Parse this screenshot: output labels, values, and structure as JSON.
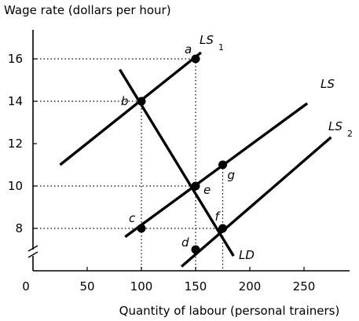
{
  "chart_data": {
    "type": "line",
    "ylabel": "Wage rate (dollars per hour)",
    "xlabel": "Quantity of labour (personal trainers)",
    "origin_label": "0",
    "xlim": [
      0,
      275
    ],
    "ylim": [
      6,
      17.5
    ],
    "x_ticks": [
      50,
      100,
      150,
      200,
      250
    ],
    "x_tick_labels": [
      "50",
      "100",
      "150",
      "200",
      "250"
    ],
    "y_ticks": [
      8,
      10,
      12,
      14,
      16
    ],
    "y_tick_labels": [
      "8",
      "10",
      "12",
      "14",
      "16"
    ],
    "series": [
      {
        "name": "LS",
        "sub": "1",
        "x": [
          25,
          155
        ],
        "y": [
          11,
          16.3
        ]
      },
      {
        "name": "LS",
        "sub": "",
        "x": [
          85,
          253
        ],
        "y": [
          7.6,
          13.9
        ]
      },
      {
        "name": "LS",
        "sub": "2",
        "x": [
          137,
          275
        ],
        "y": [
          6.2,
          12.3
        ]
      },
      {
        "name": "LD",
        "sub": "",
        "x": [
          80,
          185
        ],
        "y": [
          15.5,
          6.7
        ]
      }
    ],
    "points": [
      {
        "label": "a",
        "x": 150,
        "y": 16
      },
      {
        "label": "b",
        "x": 100,
        "y": 14
      },
      {
        "label": "c",
        "x": 100,
        "y": 8
      },
      {
        "label": "d",
        "x": 150,
        "y": 7
      },
      {
        "label": "e",
        "x": 150,
        "y": 10
      },
      {
        "label": "f",
        "x": 175,
        "y": 8
      },
      {
        "label": "g",
        "x": 175,
        "y": 11
      }
    ],
    "grid": "dotted reference lines from each point to the axes"
  }
}
